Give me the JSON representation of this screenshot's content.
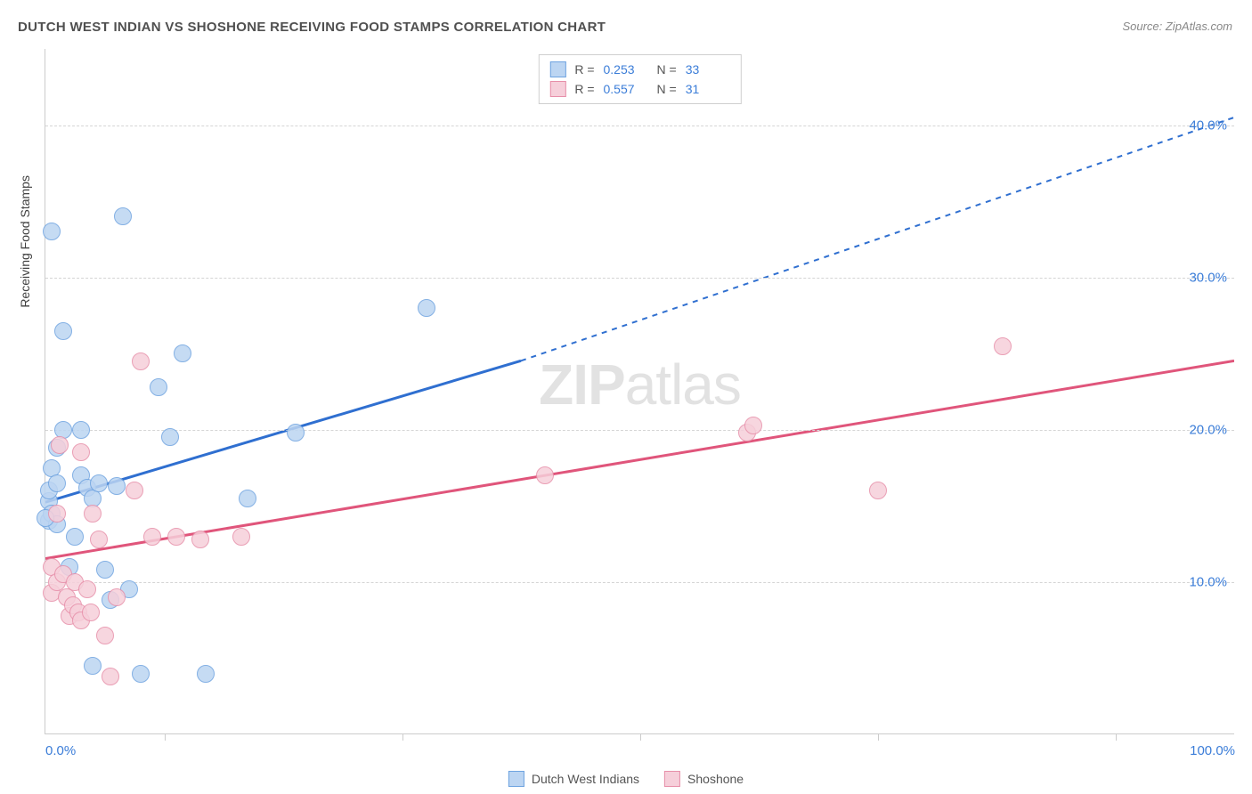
{
  "title": "DUTCH WEST INDIAN VS SHOSHONE RECEIVING FOOD STAMPS CORRELATION CHART",
  "source": "Source: ZipAtlas.com",
  "ylabel": "Receiving Food Stamps",
  "watermark_bold": "ZIP",
  "watermark_light": "atlas",
  "background_color": "#ffffff",
  "grid_color": "#d5d5d5",
  "axis_color": "#cccccc",
  "text_color": "#505050",
  "tick_label_color": "#3b7dd8",
  "xlim": [
    0,
    100
  ],
  "ylim": [
    0,
    45
  ],
  "x_ticks_minor": [
    10,
    30,
    50,
    70,
    90
  ],
  "x_tick_labels": [
    {
      "x": 0,
      "label": "0.0%"
    },
    {
      "x": 100,
      "label": "100.0%"
    }
  ],
  "y_gridlines": [
    10,
    20,
    30,
    40
  ],
  "y_tick_labels": [
    {
      "y": 10,
      "label": "10.0%"
    },
    {
      "y": 20,
      "label": "20.0%"
    },
    {
      "y": 30,
      "label": "30.0%"
    },
    {
      "y": 40,
      "label": "40.0%"
    }
  ],
  "series": [
    {
      "name": "Dutch West Indians",
      "color_fill": "#bcd5f2",
      "color_stroke": "#6ea3e0",
      "line_color": "#2f6fd0",
      "marker_radius": 10,
      "R": "0.253",
      "N": "33",
      "trend": {
        "x1": 0,
        "y1": 15.2,
        "x2_solid": 40,
        "y2_solid": 24.5,
        "x2": 100,
        "y2": 40.5
      },
      "points": [
        {
          "x": 0.3,
          "y": 15.3
        },
        {
          "x": 0.3,
          "y": 14.0
        },
        {
          "x": 0.3,
          "y": 16.0
        },
        {
          "x": 0.5,
          "y": 17.5
        },
        {
          "x": 0.5,
          "y": 14.5
        },
        {
          "x": 0.5,
          "y": 33.0
        },
        {
          "x": 1.0,
          "y": 16.5
        },
        {
          "x": 1.0,
          "y": 18.8
        },
        {
          "x": 1.0,
          "y": 13.8
        },
        {
          "x": 1.5,
          "y": 26.5
        },
        {
          "x": 1.5,
          "y": 20.0
        },
        {
          "x": 2.0,
          "y": 11.0
        },
        {
          "x": 3.0,
          "y": 17.0
        },
        {
          "x": 3.0,
          "y": 20.0
        },
        {
          "x": 3.5,
          "y": 16.2
        },
        {
          "x": 4.0,
          "y": 15.5
        },
        {
          "x": 4.5,
          "y": 16.5
        },
        {
          "x": 5.0,
          "y": 10.8
        },
        {
          "x": 5.5,
          "y": 8.8
        },
        {
          "x": 6.0,
          "y": 16.3
        },
        {
          "x": 6.5,
          "y": 34.0
        },
        {
          "x": 7.0,
          "y": 9.5
        },
        {
          "x": 8.0,
          "y": 4.0
        },
        {
          "x": 9.5,
          "y": 22.8
        },
        {
          "x": 10.5,
          "y": 19.5
        },
        {
          "x": 11.5,
          "y": 25.0
        },
        {
          "x": 13.5,
          "y": 4.0
        },
        {
          "x": 17.0,
          "y": 15.5
        },
        {
          "x": 21.0,
          "y": 19.8
        },
        {
          "x": 32.0,
          "y": 28.0
        },
        {
          "x": 4.0,
          "y": 4.5
        },
        {
          "x": 2.5,
          "y": 13.0
        },
        {
          "x": 0.0,
          "y": 14.2
        }
      ]
    },
    {
      "name": "Shoshone",
      "color_fill": "#f6cfda",
      "color_stroke": "#e78fa9",
      "line_color": "#e0557b",
      "marker_radius": 10,
      "R": "0.557",
      "N": "31",
      "trend": {
        "x1": 0,
        "y1": 11.5,
        "x2_solid": 100,
        "y2_solid": 24.5,
        "x2": 100,
        "y2": 24.5
      },
      "points": [
        {
          "x": 0.5,
          "y": 11.0
        },
        {
          "x": 0.5,
          "y": 9.3
        },
        {
          "x": 1.0,
          "y": 10.0
        },
        {
          "x": 1.0,
          "y": 14.5
        },
        {
          "x": 1.2,
          "y": 19.0
        },
        {
          "x": 1.5,
          "y": 10.5
        },
        {
          "x": 1.8,
          "y": 9.0
        },
        {
          "x": 2.0,
          "y": 7.8
        },
        {
          "x": 2.3,
          "y": 8.5
        },
        {
          "x": 2.5,
          "y": 10.0
        },
        {
          "x": 2.8,
          "y": 8.0
        },
        {
          "x": 3.0,
          "y": 18.5
        },
        {
          "x": 3.0,
          "y": 7.5
        },
        {
          "x": 3.5,
          "y": 9.5
        },
        {
          "x": 3.8,
          "y": 8.0
        },
        {
          "x": 4.0,
          "y": 14.5
        },
        {
          "x": 4.5,
          "y": 12.8
        },
        {
          "x": 5.0,
          "y": 6.5
        },
        {
          "x": 5.5,
          "y": 3.8
        },
        {
          "x": 6.0,
          "y": 9.0
        },
        {
          "x": 7.5,
          "y": 16.0
        },
        {
          "x": 8.0,
          "y": 24.5
        },
        {
          "x": 9.0,
          "y": 13.0
        },
        {
          "x": 11.0,
          "y": 13.0
        },
        {
          "x": 13.0,
          "y": 12.8
        },
        {
          "x": 16.5,
          "y": 13.0
        },
        {
          "x": 42.0,
          "y": 17.0
        },
        {
          "x": 59.0,
          "y": 19.8
        },
        {
          "x": 70.0,
          "y": 16.0
        },
        {
          "x": 80.5,
          "y": 25.5
        },
        {
          "x": 59.5,
          "y": 20.3
        }
      ]
    }
  ],
  "stats_legend_labels": {
    "R": "R =",
    "N": "N ="
  },
  "bottom_legend": [
    {
      "series_idx": 0
    },
    {
      "series_idx": 1
    }
  ]
}
